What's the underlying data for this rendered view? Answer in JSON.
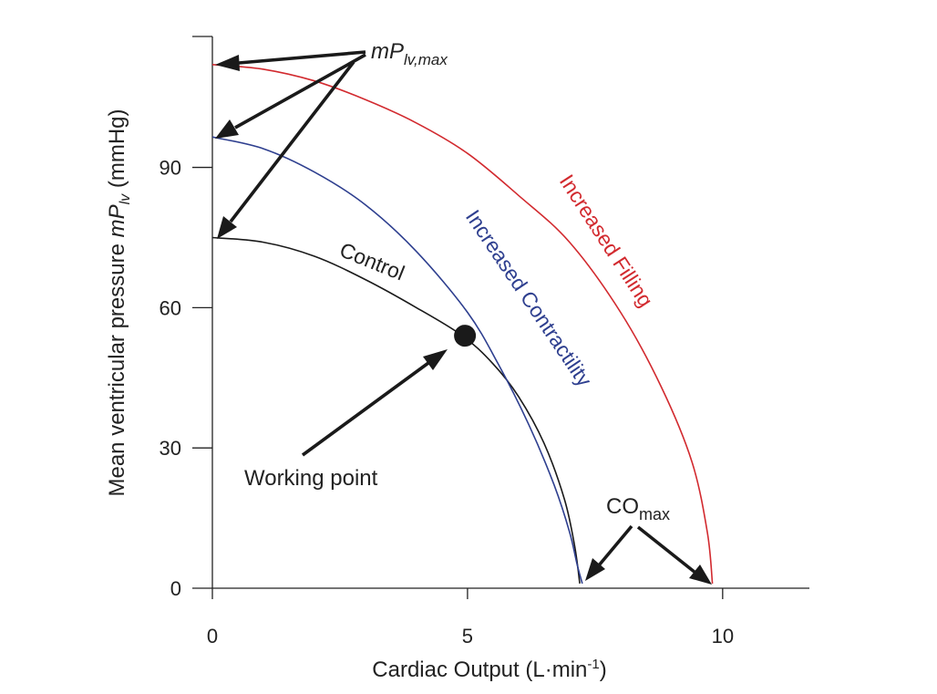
{
  "chart_data": {
    "type": "line",
    "xlabel_main": "Cardiac Output (L·min",
    "xlabel_sup": "-1",
    "xlabel_end": ")",
    "ylabel_pre": "Mean ventricular pressure ",
    "ylabel_sym": "mP",
    "ylabel_sub": "lv",
    "ylabel_post": " (mmHg)",
    "xlim": [
      0,
      11.7
    ],
    "ylim": [
      0,
      118
    ],
    "x_ticks": [
      0,
      5,
      10
    ],
    "x_tick_labels": [
      "0",
      "5",
      "10"
    ],
    "y_ticks": [
      0,
      30,
      60,
      90
    ],
    "y_tick_labels": [
      "0",
      "30",
      "60",
      "90"
    ],
    "grid": false,
    "legend": "none",
    "series": [
      {
        "name": "Control",
        "color": "#1a1a1a",
        "x": [
          0,
          1,
          2,
          3,
          4,
          4.9,
          5.5,
          6.0,
          6.5,
          6.9,
          7.1,
          7.2
        ],
        "y": [
          75,
          74,
          71,
          66,
          60,
          54,
          48,
          41,
          31,
          19,
          9,
          1
        ]
      },
      {
        "name": "Increased Contractility",
        "color": "#2e3f8f",
        "x": [
          0,
          1,
          2,
          3,
          4,
          5,
          5.6,
          6.2,
          6.7,
          7.0,
          7.15,
          7.25
        ],
        "y": [
          96.5,
          94,
          89,
          82,
          72,
          59,
          48,
          35,
          22,
          12,
          5,
          1
        ]
      },
      {
        "name": "Increased Filling",
        "color": "#d22a2f",
        "x": [
          0,
          1,
          2,
          3,
          4,
          5,
          6,
          7,
          8,
          8.8,
          9.4,
          9.7,
          9.8
        ],
        "y": [
          112,
          111,
          108.5,
          104.5,
          99.5,
          93,
          84,
          74,
          59,
          43,
          27,
          12,
          1
        ]
      }
    ],
    "working_point": {
      "x": 4.95,
      "y": 54
    },
    "curve_labels": [
      "Control",
      "Increased Contractility",
      "Increased Filling"
    ],
    "annotations": {
      "mplv_max_sym": "mP",
      "mplv_max_sub": "lv,max",
      "working_point": "Working point",
      "comax_main": "CO",
      "comax_sub": "max"
    }
  }
}
